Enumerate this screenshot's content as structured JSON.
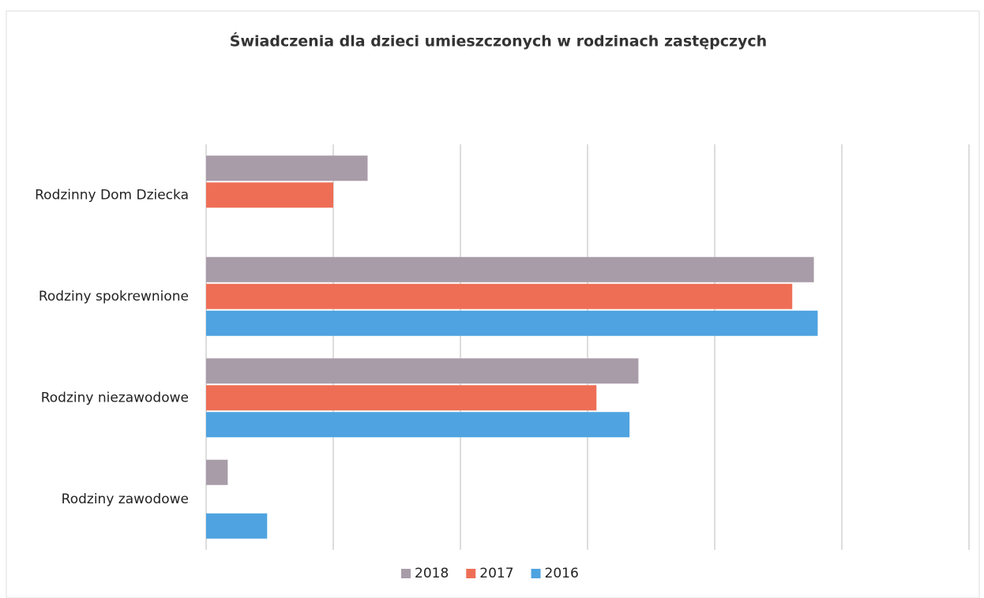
{
  "chart_data": {
    "type": "hbar",
    "title": "Świadczenia dla dzieci umieszczonych w rodzinach zastępczych",
    "categories": [
      "Rodzinny Dom Dziecka",
      "Rodziny spokrewnione",
      "Rodziny niezawodowe",
      "Rodziny zawodowe"
    ],
    "series": [
      {
        "name": "2018",
        "color": "#a89ca8",
        "values": [
          1.27,
          4.78,
          3.4,
          0.17
        ]
      },
      {
        "name": "2017",
        "color": "#ee6e55",
        "values": [
          1.0,
          4.61,
          3.07,
          0
        ]
      },
      {
        "name": "2016",
        "color": "#4fa3e0",
        "values": [
          0,
          4.81,
          3.33,
          0.48
        ]
      }
    ],
    "xlim": [
      0,
      6
    ],
    "xticks": [
      0,
      1,
      2,
      3,
      4,
      5,
      6
    ],
    "grid": true,
    "legend": "bottom"
  }
}
